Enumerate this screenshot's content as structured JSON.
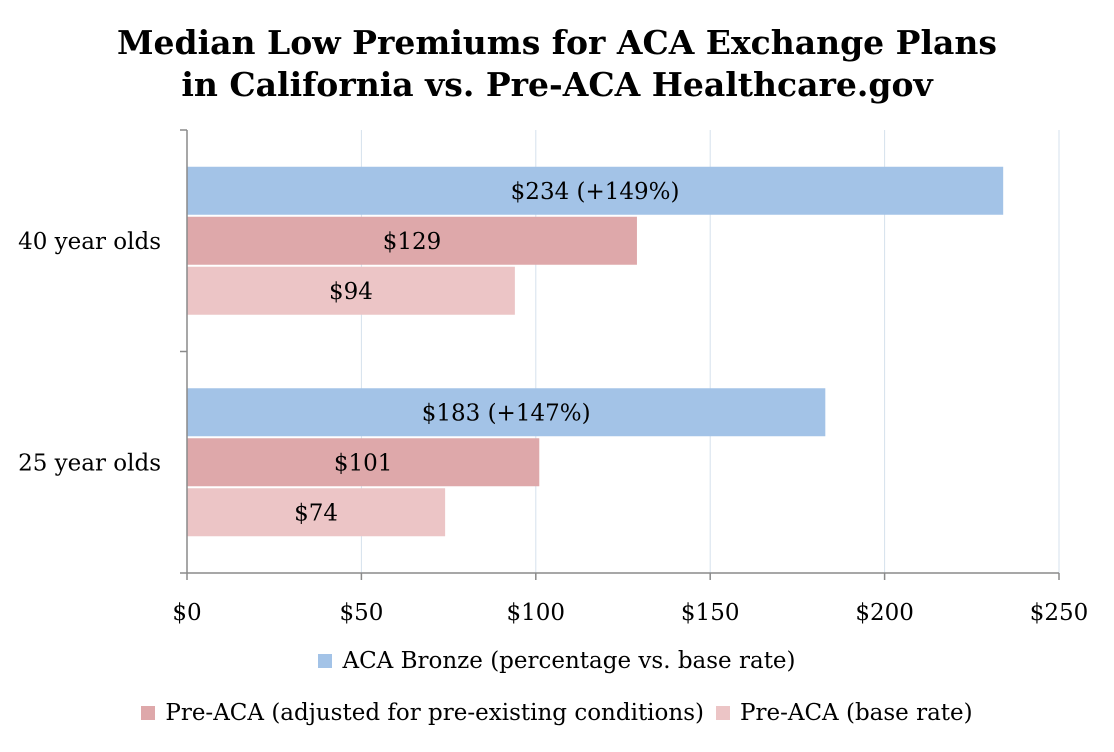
{
  "chart_data": {
    "type": "bar",
    "orientation": "horizontal",
    "title": "Median Low Premiums for ACA Exchange Plans",
    "subtitle": "in California vs. Pre-ACA Healthcare.gov",
    "categories": [
      "40 year olds",
      "25 year olds"
    ],
    "series": [
      {
        "name": "ACA Bronze (percentage vs. base rate)",
        "color": "#a3c3e7",
        "values": [
          234,
          183
        ],
        "labels": [
          "$234 (+149%)",
          "$183 (+147%)"
        ]
      },
      {
        "name": "Pre-ACA (adjusted for pre-existing conditions)",
        "color": "#dea8aa",
        "values": [
          129,
          101
        ],
        "labels": [
          "$129",
          "$101"
        ]
      },
      {
        "name": "Pre-ACA (base rate)",
        "color": "#ecc5c6",
        "values": [
          94,
          74
        ],
        "labels": [
          "$94",
          "$74"
        ]
      }
    ],
    "xlim": [
      0,
      250
    ],
    "xticks": [
      0,
      50,
      100,
      150,
      200,
      250
    ],
    "xtick_labels": [
      "$0",
      "$50",
      "$100",
      "$150",
      "$200",
      "$250"
    ],
    "grid": true,
    "legend": "bottom"
  }
}
